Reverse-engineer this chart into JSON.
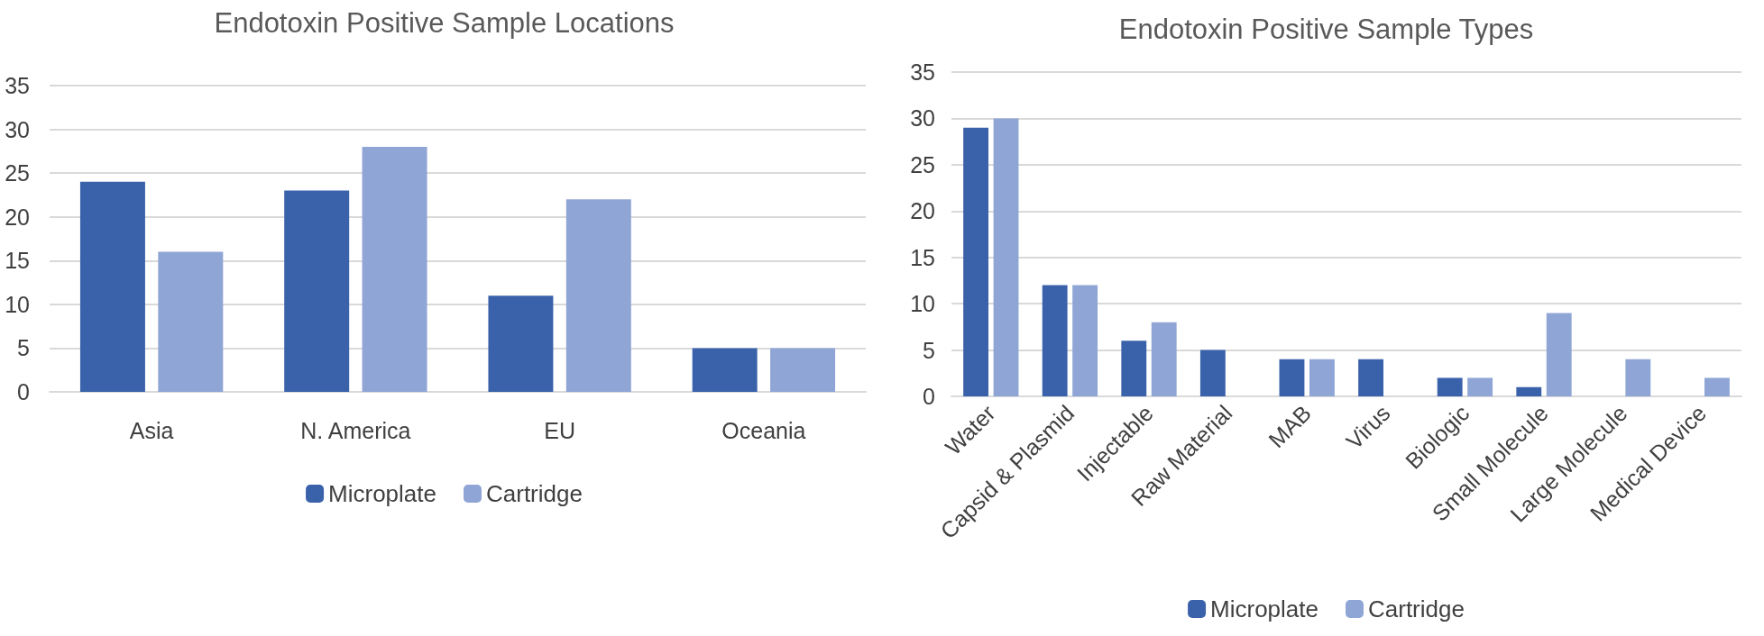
{
  "chart_data": [
    {
      "type": "bar",
      "title": "Endotoxin Positive Sample Locations",
      "categories": [
        "Asia",
        "N. America",
        "EU",
        "Oceania"
      ],
      "series": [
        {
          "name": "Microplate",
          "color": "#3a62ab",
          "values": [
            24,
            23,
            11,
            5
          ]
        },
        {
          "name": "Cartridge",
          "color": "#8fa5d6",
          "values": [
            16,
            28,
            22,
            5
          ]
        }
      ],
      "ylim": [
        0,
        35
      ],
      "yticks": [
        0,
        5,
        10,
        15,
        20,
        25,
        30,
        35
      ],
      "grid": "y",
      "legend": "bottom"
    },
    {
      "type": "bar",
      "title": "Endotoxin Positive Sample Types",
      "categories": [
        "Water",
        "Capsid & Plasmid",
        "Injectable",
        "Raw Material",
        "MAB",
        "Virus",
        "Biologic",
        "Small Molecule",
        "Large Molecule",
        "Medical Device"
      ],
      "series": [
        {
          "name": "Microplate",
          "color": "#3a62ab",
          "values": [
            29,
            12,
            6,
            5,
            4,
            4,
            2,
            1,
            0,
            0
          ]
        },
        {
          "name": "Cartridge",
          "color": "#8fa5d6",
          "values": [
            30,
            12,
            8,
            0,
            4,
            0,
            2,
            9,
            4,
            2
          ]
        }
      ],
      "ylim": [
        0,
        35
      ],
      "yticks": [
        0,
        5,
        10,
        15,
        20,
        25,
        30,
        35
      ],
      "grid": "y",
      "legend": "bottom"
    }
  ]
}
